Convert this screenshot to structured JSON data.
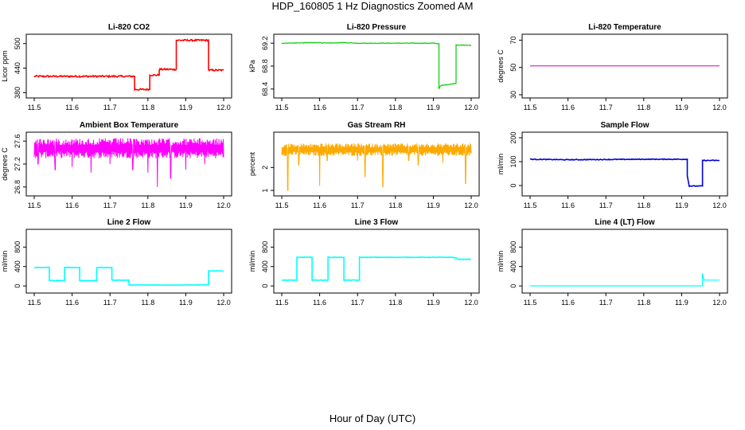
{
  "title": "HDP_160805  1 Hz Diagnostics Zoomed AM",
  "footer_xlabel": "Hour of Day (UTC)",
  "chart_data": [
    {
      "type": "line",
      "title": "Li-820 CO2",
      "ylabel": "Licor ppm",
      "color": "#ff0000",
      "xlim": [
        11.5,
        12.0
      ],
      "ylim": [
        375,
        515
      ],
      "xticks": [
        11.5,
        11.6,
        11.7,
        11.8,
        11.9,
        12.0
      ],
      "yticks": [
        380,
        440,
        500
      ],
      "noise": 2,
      "line_width": 1.6,
      "x": [
        11.5,
        11.765,
        11.765,
        11.805,
        11.805,
        11.83,
        11.83,
        11.875,
        11.875,
        11.96,
        11.96,
        12.0
      ],
      "y": [
        420,
        420,
        388,
        388,
        423,
        423,
        437,
        437,
        508,
        508,
        435,
        435
      ]
    },
    {
      "type": "line",
      "title": "Li-820 Pressure",
      "ylabel": "kPa",
      "color": "#00cc00",
      "xlim": [
        11.5,
        12.0
      ],
      "ylim": [
        68.3,
        69.3
      ],
      "xticks": [
        11.5,
        11.6,
        11.7,
        11.8,
        11.9,
        12.0
      ],
      "yticks": [
        68.4,
        68.8,
        69.2
      ],
      "noise": 0.005,
      "line_width": 1.2,
      "x": [
        11.5,
        11.6,
        11.62,
        11.66,
        11.7,
        11.8,
        11.9,
        11.915,
        11.915,
        11.92,
        11.96,
        11.96,
        12.0
      ],
      "y": [
        69.2,
        69.21,
        69.2,
        69.21,
        69.2,
        69.2,
        69.2,
        69.19,
        68.41,
        68.46,
        68.5,
        69.17,
        69.16
      ]
    },
    {
      "type": "line",
      "title": "Li-820 Temperature",
      "ylabel": "degrees C",
      "color": "#cc00cc",
      "xlim": [
        11.5,
        12.0
      ],
      "ylim": [
        30,
        72
      ],
      "xticks": [
        11.5,
        11.6,
        11.7,
        11.8,
        11.9,
        12.0
      ],
      "yticks": [
        30,
        50,
        70
      ],
      "noise": 0,
      "line_width": 1.0,
      "x": [
        11.5,
        12.0
      ],
      "y": [
        51.2,
        51.2
      ]
    },
    {
      "type": "line",
      "title": "Ambient Box Temperature",
      "ylabel": "degrees C",
      "color": "#ff00ff",
      "xlim": [
        11.5,
        12.0
      ],
      "ylim": [
        26.7,
        27.7
      ],
      "xticks": [
        11.5,
        11.6,
        11.7,
        11.8,
        11.9,
        12.0
      ],
      "yticks": [
        26.8,
        27.2,
        27.6
      ],
      "noise": 0,
      "line_width": 1.0,
      "band": {
        "low": 27.3,
        "high": 27.65,
        "dips": [
          [
            11.51,
            27.2
          ],
          [
            11.555,
            27.1
          ],
          [
            11.6,
            27.15
          ],
          [
            11.65,
            27.05
          ],
          [
            11.7,
            27.2
          ],
          [
            11.76,
            27.1
          ],
          [
            11.8,
            27.05
          ],
          [
            11.825,
            26.8
          ],
          [
            11.86,
            26.95
          ],
          [
            11.9,
            27.1
          ],
          [
            11.95,
            27.2
          ]
        ]
      },
      "x": [],
      "y": []
    },
    {
      "type": "line",
      "title": "Gas Stream RH",
      "ylabel": "percent",
      "color": "#ffaa00",
      "xlim": [
        11.5,
        12.0
      ],
      "ylim": [
        0.9,
        3.4
      ],
      "xticks": [
        11.5,
        11.6,
        11.7,
        11.8,
        11.9,
        12.0
      ],
      "yticks": [
        1.0,
        2.0
      ],
      "noise": 0,
      "line_width": 1.0,
      "band": {
        "low": 2.5,
        "high": 3.05,
        "dips": [
          [
            11.516,
            1.0
          ],
          [
            11.545,
            2.1
          ],
          [
            11.6,
            1.2
          ],
          [
            11.62,
            2.3
          ],
          [
            11.7,
            2.3
          ],
          [
            11.72,
            1.6
          ],
          [
            11.767,
            1.15
          ],
          [
            11.835,
            2.3
          ],
          [
            11.86,
            2.1
          ],
          [
            11.925,
            2.2
          ],
          [
            11.985,
            1.3
          ]
        ]
      },
      "x": [],
      "y": []
    },
    {
      "type": "line",
      "title": "Sample Flow",
      "ylabel": "ml/min",
      "color": "#0000dd",
      "xlim": [
        11.5,
        12.0
      ],
      "ylim": [
        -30,
        210
      ],
      "xticks": [
        11.5,
        11.6,
        11.7,
        11.8,
        11.9,
        12.0
      ],
      "yticks": [
        0,
        100,
        200
      ],
      "noise": 1.5,
      "line_width": 1.6,
      "x": [
        11.5,
        11.6,
        11.8,
        11.915,
        11.915,
        11.92,
        11.955,
        11.955,
        12.0
      ],
      "y": [
        110,
        108,
        110,
        110,
        40,
        -2,
        -2,
        105,
        105
      ]
    },
    {
      "type": "line",
      "title": "Line 2 Flow",
      "ylabel": "ml/min",
      "color": "#00ffff",
      "xlim": [
        11.5,
        12.0
      ],
      "ylim": [
        -80,
        1100
      ],
      "xticks": [
        11.5,
        11.6,
        11.7,
        11.8,
        11.9,
        12.0
      ],
      "yticks": [
        0,
        400,
        800
      ],
      "noise": 5,
      "line_width": 1.6,
      "x": [
        11.5,
        11.54,
        11.54,
        11.58,
        11.58,
        11.62,
        11.62,
        11.665,
        11.665,
        11.705,
        11.705,
        11.75,
        11.75,
        11.96,
        11.96,
        12.0
      ],
      "y": [
        380,
        380,
        110,
        110,
        380,
        380,
        110,
        110,
        380,
        380,
        120,
        120,
        20,
        20,
        310,
        310
      ]
    },
    {
      "type": "line",
      "title": "Line 3 Flow",
      "ylabel": "ml/min",
      "color": "#00ffff",
      "xlim": [
        11.5,
        12.0
      ],
      "ylim": [
        -80,
        1100
      ],
      "xticks": [
        11.5,
        11.6,
        11.7,
        11.8,
        11.9,
        12.0
      ],
      "yticks": [
        0,
        400,
        800
      ],
      "noise": 5,
      "line_width": 1.6,
      "x": [
        11.5,
        11.54,
        11.54,
        11.58,
        11.58,
        11.622,
        11.622,
        11.664,
        11.664,
        11.705,
        11.705,
        11.95,
        11.96,
        11.965,
        12.0
      ],
      "y": [
        120,
        120,
        590,
        590,
        120,
        120,
        590,
        590,
        120,
        120,
        590,
        590,
        575,
        550,
        550
      ]
    },
    {
      "type": "line",
      "title": "Line 4 (LT) Flow",
      "ylabel": "ml/min",
      "color": "#00ffff",
      "xlim": [
        11.5,
        12.0
      ],
      "ylim": [
        -80,
        1100
      ],
      "xticks": [
        11.5,
        11.6,
        11.7,
        11.8,
        11.9,
        12.0
      ],
      "yticks": [
        0,
        400,
        800
      ],
      "noise": 0,
      "line_width": 1.2,
      "x": [
        11.5,
        11.955,
        11.955,
        11.958,
        11.962,
        12.0
      ],
      "y": [
        2,
        2,
        260,
        140,
        120,
        120
      ]
    }
  ]
}
